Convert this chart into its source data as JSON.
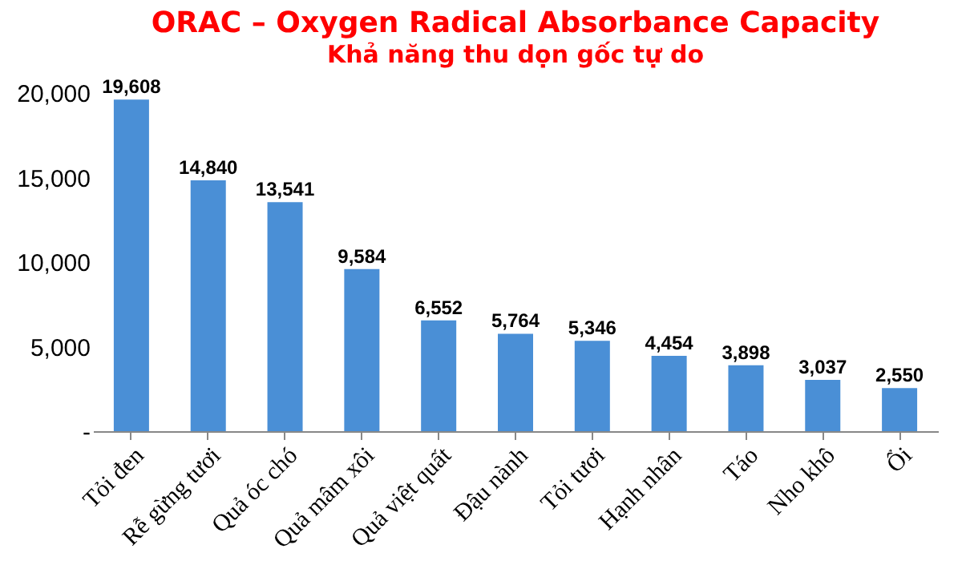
{
  "chart_data": {
    "type": "bar",
    "title": "ORAC – Oxygen Radical Absorbance Capacity",
    "subtitle": "Khả năng thu dọn gốc tự do",
    "categories": [
      "Tỏi đen",
      "Rễ gừng tươi",
      "Quả óc chó",
      "Quả mâm xôi",
      "Quả việt quất",
      "Đậu nành",
      "Tỏi tươi",
      "Hạnh nhân",
      "Táo",
      "Nho khô",
      "Ổi"
    ],
    "values": [
      19608,
      14840,
      13541,
      9584,
      6552,
      5764,
      5346,
      4454,
      3898,
      3037,
      2550
    ],
    "color": "#4a8fd6",
    "ylim": [
      0,
      20000
    ],
    "yticks": [
      {
        "value": 0,
        "label": "-"
      },
      {
        "value": 5000,
        "label": "5,000"
      },
      {
        "value": 10000,
        "label": "10,000"
      },
      {
        "value": 15000,
        "label": "15,000"
      },
      {
        "value": 20000,
        "label": "20,000"
      }
    ],
    "value_labels": [
      "19,608",
      "14,840",
      "13,541",
      "9,584",
      "6,552",
      "5,764",
      "5,346",
      "4,454",
      "3,898",
      "3,037",
      "2,550"
    ],
    "grid": false
  }
}
